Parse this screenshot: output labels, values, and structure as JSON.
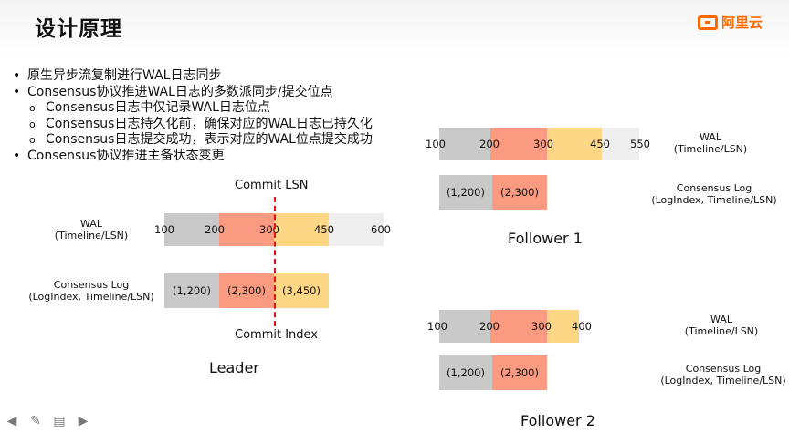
{
  "slide": {
    "title": "设计原理",
    "logo_text": "阿里云"
  },
  "bullets": [
    {
      "level": 1,
      "text": "原生异步流复制进行WAL日志同步"
    },
    {
      "level": 1,
      "text": "Consensus协议推进WAL日志的多数派同步/提交位点"
    },
    {
      "level": 2,
      "text": "Consensus日志中仅记录WAL日志位点"
    },
    {
      "level": 2,
      "text": "Consensus日志持久化前，确保对应的WAL日志已持久化"
    },
    {
      "level": 2,
      "text": "Consensus日志提交成功，表示对应的WAL位点提交成功"
    },
    {
      "level": 1,
      "text": "Consensus协议推进主备状态变更"
    }
  ],
  "colors": {
    "gray": "#c9c9c9",
    "salmon": "#fa9a80",
    "yellow": "#fdd785",
    "light": "#eeeeee",
    "commit": "#e2111a"
  },
  "leader": {
    "caption": "Leader",
    "wal_label": "WAL\n(Timeline/LSN)",
    "consensus_label": "Consensus Log\n(LogIndex, Timeline/LSN)",
    "wal_ticks": [
      "100",
      "200",
      "300",
      "450",
      "600"
    ],
    "log_entries": [
      "(1,200)",
      "(2,300)",
      "(3,450)"
    ],
    "commit_lsn_label": "Commit LSN",
    "commit_index_label": "Commit Index"
  },
  "follower1": {
    "caption": "Follower 1",
    "wal_label": "WAL\n(Timeline/LSN)",
    "consensus_label": "Consensus Log\n(LogIndex, Timeline/LSN)",
    "wal_ticks": [
      "100",
      "200",
      "300",
      "450",
      "550"
    ],
    "log_entries": [
      "(1,200)",
      "(2,300)"
    ]
  },
  "follower2": {
    "caption": "Follower 2",
    "wal_label": "WAL\n(Timeline/LSN)",
    "consensus_label": "Consensus Log\n(LogIndex, Timeline/LSN)",
    "wal_ticks": [
      "100",
      "200",
      "300",
      "400"
    ],
    "log_entries": [
      "(1,200)",
      "(2,300)"
    ]
  },
  "nav": {
    "prev": "◀",
    "pen": "✎",
    "menu": "▤",
    "next": "▶"
  }
}
